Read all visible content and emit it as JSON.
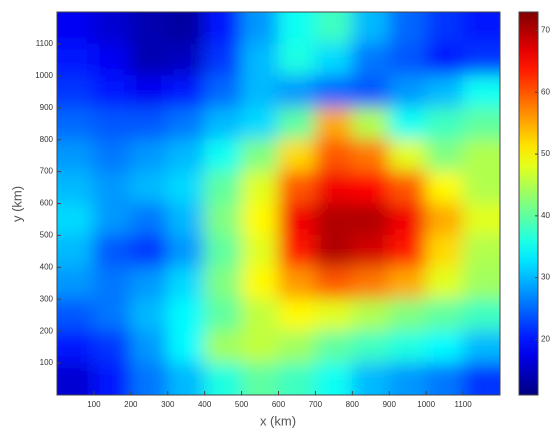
{
  "chart_data": {
    "type": "heatmap",
    "xlabel": "x (km)",
    "ylabel": "y (km)",
    "xlim": [
      0,
      1200
    ],
    "ylim": [
      0,
      1200
    ],
    "xticks": [
      100,
      200,
      300,
      400,
      500,
      600,
      700,
      800,
      900,
      1000,
      1100
    ],
    "yticks": [
      100,
      200,
      300,
      400,
      500,
      600,
      700,
      800,
      900,
      1000,
      1100
    ],
    "x": [
      50,
      150,
      250,
      350,
      450,
      550,
      650,
      750,
      850,
      950,
      1050,
      1150
    ],
    "y": [
      1150,
      1050,
      950,
      850,
      750,
      650,
      550,
      450,
      350,
      250,
      150,
      50
    ],
    "z": [
      [
        18,
        16,
        14,
        13,
        20,
        28,
        35,
        38,
        30,
        25,
        22,
        20
      ],
      [
        20,
        18,
        14,
        15,
        22,
        30,
        36,
        32,
        26,
        24,
        20,
        22
      ],
      [
        22,
        20,
        18,
        20,
        25,
        30,
        28,
        25,
        24,
        28,
        30,
        35
      ],
      [
        25,
        24,
        24,
        26,
        30,
        32,
        40,
        55,
        45,
        35,
        38,
        40
      ],
      [
        28,
        26,
        28,
        30,
        35,
        42,
        52,
        60,
        58,
        48,
        42,
        45
      ],
      [
        30,
        28,
        30,
        32,
        40,
        48,
        60,
        66,
        65,
        60,
        50,
        45
      ],
      [
        32,
        28,
        26,
        30,
        42,
        50,
        66,
        70,
        70,
        66,
        55,
        48
      ],
      [
        30,
        24,
        22,
        28,
        40,
        48,
        64,
        70,
        68,
        64,
        52,
        45
      ],
      [
        28,
        26,
        28,
        32,
        42,
        50,
        56,
        60,
        58,
        55,
        48,
        44
      ],
      [
        24,
        26,
        30,
        34,
        40,
        46,
        50,
        48,
        45,
        42,
        40,
        38
      ],
      [
        20,
        22,
        28,
        34,
        44,
        46,
        44,
        40,
        38,
        36,
        34,
        30
      ],
      [
        16,
        20,
        26,
        30,
        36,
        40,
        38,
        35,
        30,
        28,
        26,
        22
      ]
    ],
    "clim": [
      11,
      73
    ],
    "cticks": [
      20,
      30,
      40,
      50,
      60,
      70
    ],
    "colormap": "jet"
  }
}
